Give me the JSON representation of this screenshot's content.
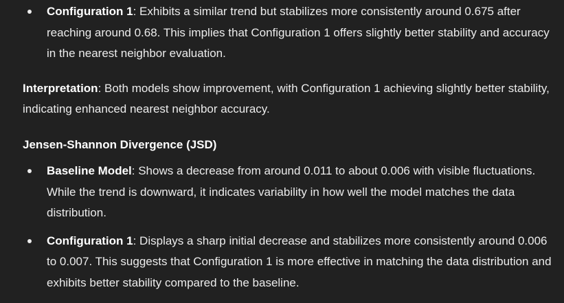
{
  "config1_nn": {
    "label": "Configuration 1",
    "text": ": Exhibits a similar trend but stabilizes more consistently around 0.675 after reaching around 0.68. This implies that Configuration 1 offers slightly better stability and accuracy in the nearest neighbor evaluation."
  },
  "interpretation": {
    "label": "Interpretation",
    "text": ": Both models show improvement, with Configuration 1 achieving slightly better stability, indicating enhanced nearest neighbor accuracy."
  },
  "jsd_heading": "Jensen-Shannon Divergence (JSD)",
  "jsd_items": [
    {
      "label": "Baseline Model",
      "text": ": Shows a decrease from around 0.011 to about 0.006 with visible fluctuations. While the trend is downward, it indicates variability in how well the model matches the data distribution."
    },
    {
      "label": "Configuration 1",
      "text": ": Displays a sharp initial decrease and stabilizes more consistently around 0.006 to 0.007. This suggests that Configuration 1 is more effective in matching the data distribution and exhibits better stability compared to the baseline."
    }
  ]
}
